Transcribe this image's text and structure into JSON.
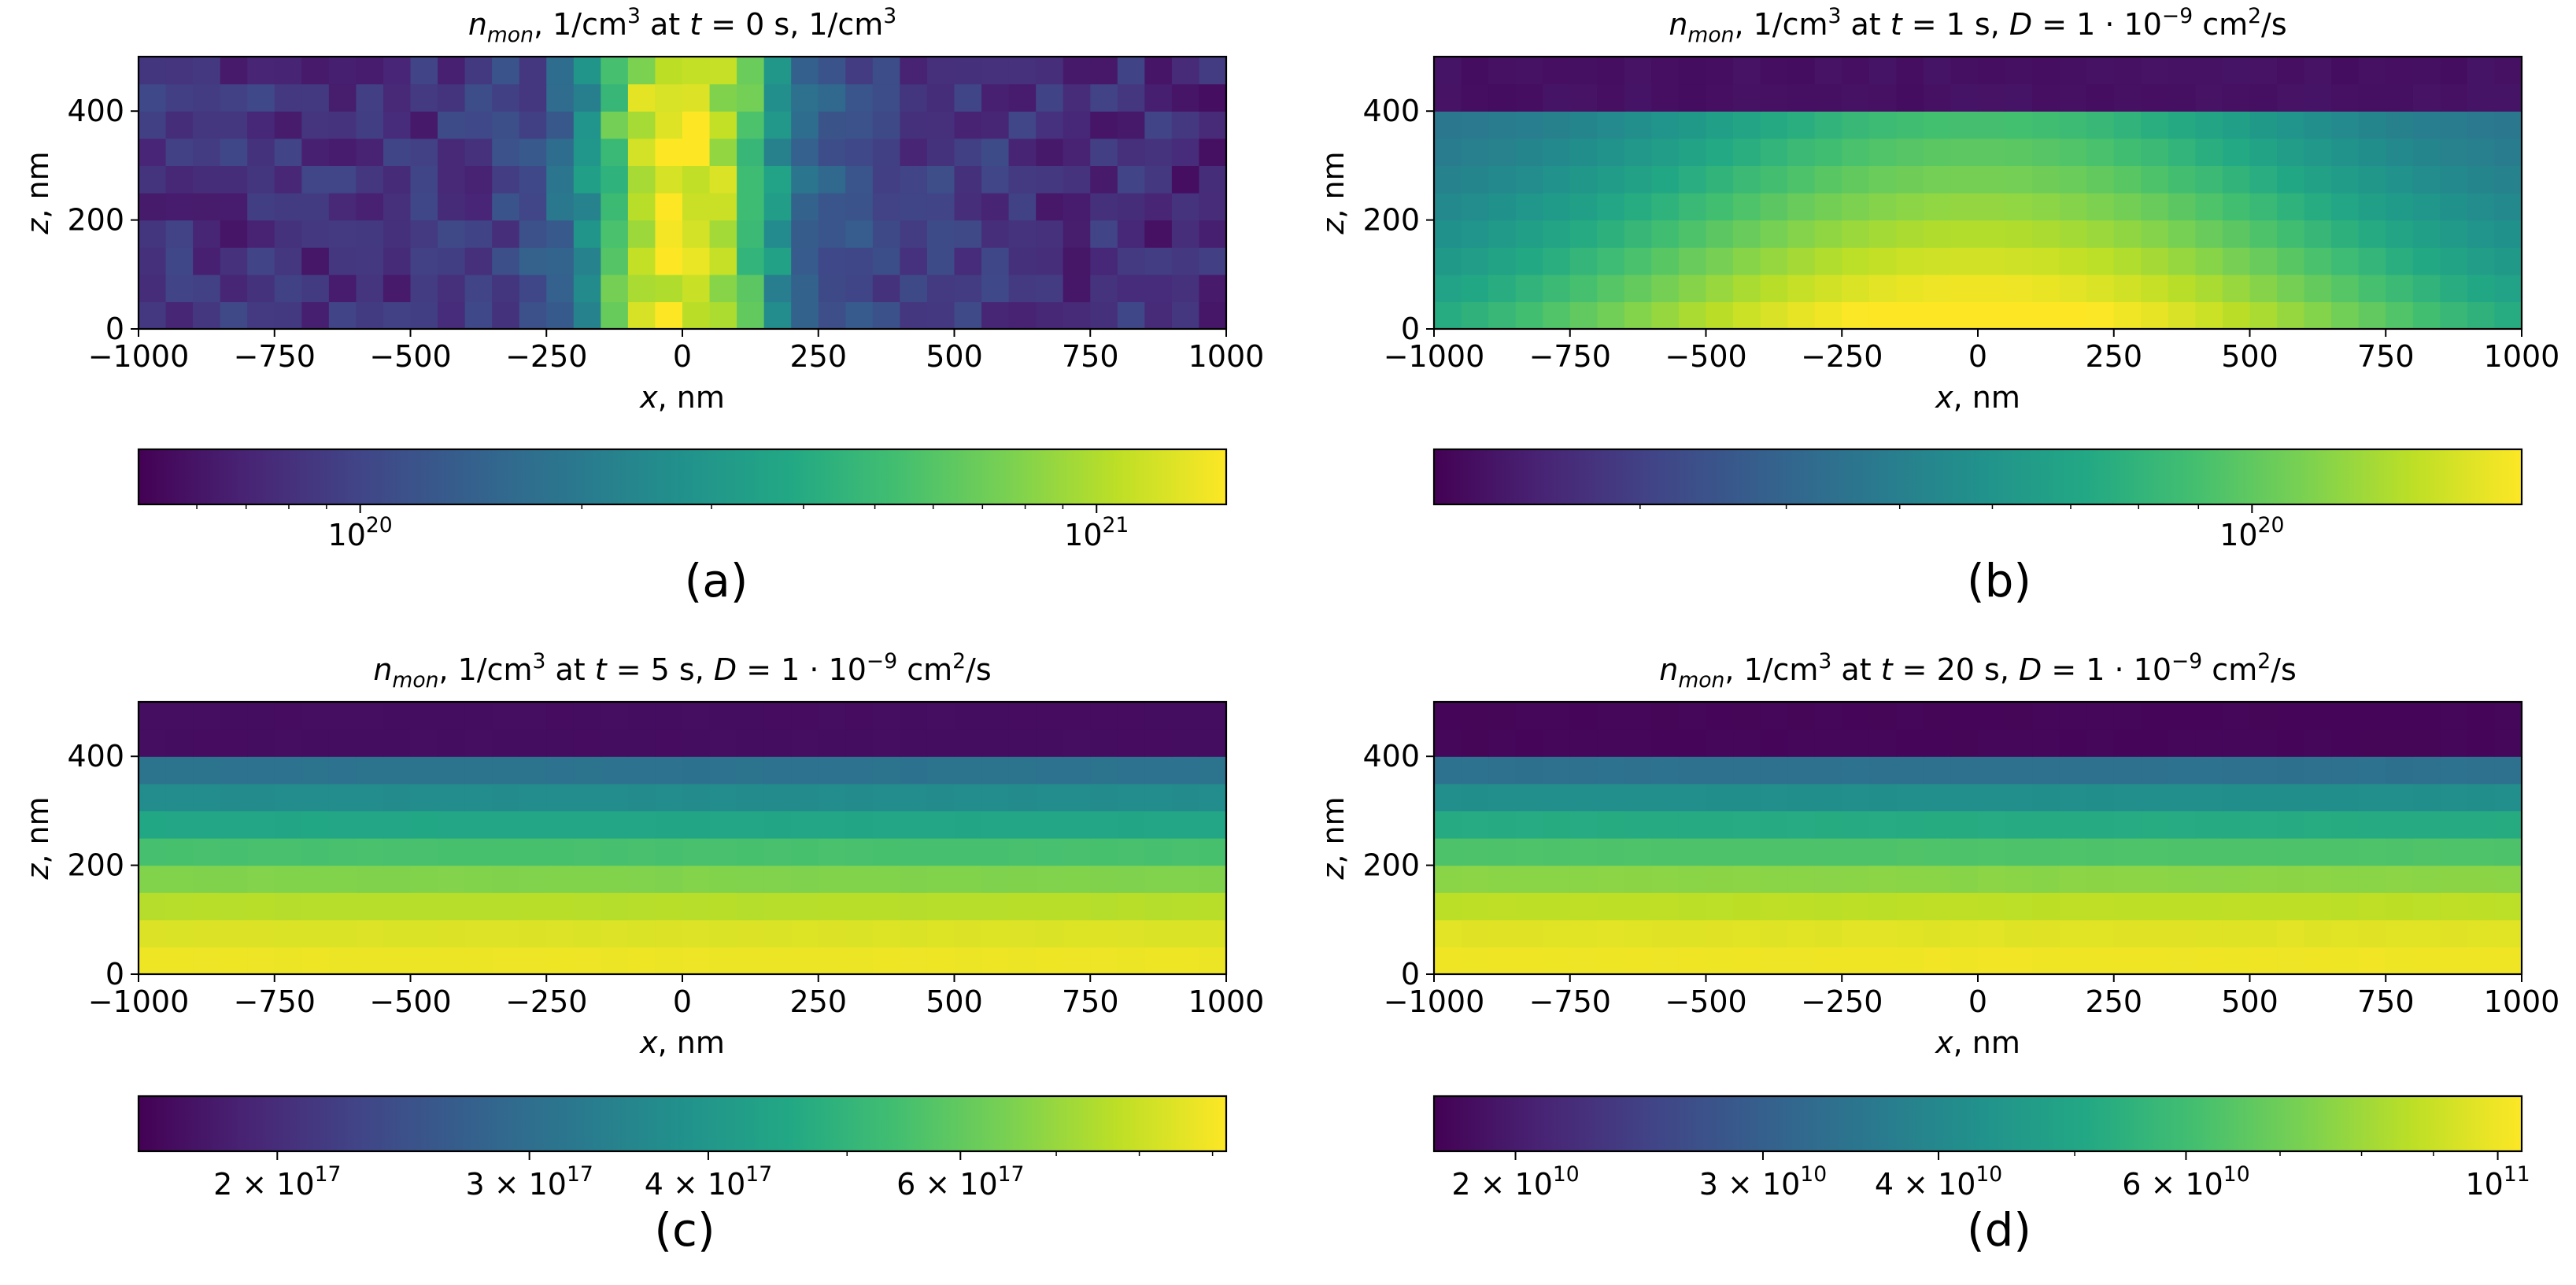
{
  "figure": {
    "panels": [
      {
        "id": "a",
        "title_parts": {
          "n": "n",
          "sub": "mon",
          "mid": ", 1/cm",
          "sup": "3",
          "rest": " at ",
          "t": "t",
          "tail": " = 0 s, 1/cm",
          "sup2": "3"
        },
        "title_text": "n_mon, 1/cm^3 at t = 0 s, 1/cm^3",
        "xlabel_var": "x",
        "xlabel_unit": ", nm",
        "ylabel_var": "z",
        "ylabel_unit": ", nm",
        "xticks": [
          "−1000",
          "−750",
          "−500",
          "−250",
          "0",
          "250",
          "500",
          "750",
          "1000"
        ],
        "yticks": [
          "0",
          "200",
          "400"
        ],
        "cbar_ticks": [
          {
            "base": "10",
            "exp": "20"
          },
          {
            "base": "10",
            "exp": "21"
          }
        ],
        "panel_label": "(a)"
      },
      {
        "id": "b",
        "title_text": "n_mon, 1/cm^3 at t = 1 s, D = 1·10^-9 cm^2/s",
        "title_parts": {
          "n": "n",
          "sub": "mon",
          "mid": ", 1/cm",
          "sup": "3",
          "rest": " at ",
          "t": "t",
          "tail": " = 1 s, ",
          "D": "D",
          "eq": " = 1 · 10",
          "dexp": "−9",
          "unit": " cm",
          "usup": "2",
          "uend": "/s"
        },
        "xlabel_var": "x",
        "xlabel_unit": ", nm",
        "ylabel_var": "z",
        "ylabel_unit": ", nm",
        "xticks": [
          "−1000",
          "−750",
          "−500",
          "−250",
          "0",
          "250",
          "500",
          "750",
          "1000"
        ],
        "yticks": [
          "0",
          "200",
          "400"
        ],
        "cbar_ticks": [
          {
            "base": "10",
            "exp": "20"
          }
        ],
        "panel_label": "(b)"
      },
      {
        "id": "c",
        "title_text": "n_mon, 1/cm^3 at t = 5 s, D = 1·10^-9 cm^2/s",
        "title_parts": {
          "n": "n",
          "sub": "mon",
          "mid": ", 1/cm",
          "sup": "3",
          "rest": " at ",
          "t": "t",
          "tail": " = 5 s, ",
          "D": "D",
          "eq": " = 1 · 10",
          "dexp": "−9",
          "unit": " cm",
          "usup": "2",
          "uend": "/s"
        },
        "xlabel_var": "x",
        "xlabel_unit": ", nm",
        "ylabel_var": "z",
        "ylabel_unit": ", nm",
        "xticks": [
          "−1000",
          "−750",
          "−500",
          "−250",
          "0",
          "250",
          "500",
          "750",
          "1000"
        ],
        "yticks": [
          "0",
          "200",
          "400"
        ],
        "cbar_ticks": [
          {
            "base": "2 × 10",
            "exp": "17"
          },
          {
            "base": "3 × 10",
            "exp": "17"
          },
          {
            "base": "4 × 10",
            "exp": "17"
          },
          {
            "base": "6 × 10",
            "exp": "17"
          }
        ],
        "panel_label": "(c)"
      },
      {
        "id": "d",
        "title_text": "n_mon, 1/cm^3 at t = 20 s, D = 1·10^-9 cm^2/s",
        "title_parts": {
          "n": "n",
          "sub": "mon",
          "mid": ", 1/cm",
          "sup": "3",
          "rest": " at ",
          "t": "t",
          "tail": " = 20 s, ",
          "D": "D",
          "eq": " = 1 · 10",
          "dexp": "−9",
          "unit": " cm",
          "usup": "2",
          "uend": "/s"
        },
        "xlabel_var": "x",
        "xlabel_unit": ", nm",
        "ylabel_var": "z",
        "ylabel_unit": ", nm",
        "xticks": [
          "−1000",
          "−750",
          "−500",
          "−250",
          "0",
          "250",
          "500",
          "750",
          "1000"
        ],
        "yticks": [
          "0",
          "200",
          "400"
        ],
        "cbar_ticks": [
          {
            "base": "2 × 10",
            "exp": "10"
          },
          {
            "base": "3 × 10",
            "exp": "10"
          },
          {
            "base": "4 × 10",
            "exp": "10"
          },
          {
            "base": "6 × 10",
            "exp": "10"
          },
          {
            "base": "10",
            "exp": "11"
          }
        ],
        "panel_label": "(d)"
      }
    ]
  },
  "chart_data": [
    {
      "type": "heatmap",
      "title": "n_mon, 1/cm^3 at t = 0 s, 1/cm^3",
      "xlabel": "x, nm",
      "ylabel": "z, nm",
      "xlim": [
        -1000,
        1000
      ],
      "ylim": [
        0,
        500
      ],
      "colormap": "viridis",
      "color_scale": "log",
      "colorbar_range": [
        5e+19,
        1.5e+21
      ],
      "cell_size_nm": 50,
      "profile_x": [
        -1000,
        -900,
        -800,
        -700,
        -600,
        -500,
        -400,
        -300,
        -250,
        -200,
        -150,
        -100,
        -50,
        0,
        50,
        100,
        150,
        200,
        250,
        300,
        400,
        500,
        600,
        700,
        800,
        900,
        1000
      ],
      "profile_value": [
        8e+19,
        8e+19,
        8e+19,
        8e+19,
        8e+19,
        8e+19,
        8.5e+19,
        1e+20,
        1.2e+20,
        1.8e+20,
        3.5e+20,
        8e+20,
        1.2e+21,
        1.4e+21,
        1.2e+21,
        8e+20,
        3.5e+20,
        2e+20,
        1.3e+20,
        1.1e+20,
        9e+19,
        9e+19,
        8.5e+19,
        8e+19,
        8e+19,
        7.5e+19,
        7e+19
      ]
    },
    {
      "type": "heatmap",
      "title": "n_mon, 1/cm^3 at t = 1 s, D = 1·10^-9 cm^2/s",
      "xlabel": "x, nm",
      "ylabel": "z, nm",
      "xlim": [
        -1000,
        1000
      ],
      "ylim": [
        0,
        500
      ],
      "colormap": "viridis",
      "color_scale": "log",
      "colorbar_range": [
        2e+19,
        1.7e+20
      ],
      "cell_size_nm": 50,
      "model": "max near x=0,z=0 (~1.6e20), decreasing with |x| and z; top layer 400-500 nm ~2.2e19"
    },
    {
      "type": "heatmap",
      "title": "n_mon, 1/cm^3 at t = 5 s, D = 1·10^-9 cm^2/s",
      "xlabel": "x, nm",
      "ylabel": "z, nm",
      "xlim": [
        -1000,
        1000
      ],
      "ylim": [
        0,
        500
      ],
      "colormap": "viridis",
      "color_scale": "log",
      "colorbar_range": [
        1.6e+17,
        9.2e+17
      ],
      "cell_size_nm": 50,
      "z_layers_nm": [
        0,
        50,
        100,
        150,
        200,
        250,
        300,
        350,
        400,
        450
      ],
      "layer_values": [
        8.8e+17,
        8.4e+17,
        7.6e+17,
        6.6e+17,
        5.5e+17,
        4.5e+17,
        3.7e+17,
        3.1e+17,
        1.7e+17,
        1.7e+17
      ]
    },
    {
      "type": "heatmap",
      "title": "n_mon, 1/cm^3 at t = 20 s, D = 1·10^-9 cm^2/s",
      "xlabel": "x, nm",
      "ylabel": "z, nm",
      "xlim": [
        -1000,
        1000
      ],
      "ylim": [
        0,
        500
      ],
      "colormap": "viridis",
      "color_scale": "log",
      "colorbar_range": [
        17500000000.0,
        104000000000.0
      ],
      "cell_size_nm": 50,
      "z_layers_nm": [
        0,
        50,
        100,
        150,
        200,
        250,
        300,
        350,
        400,
        450
      ],
      "layer_values": [
        100000000000.0,
        96000000000.0,
        87000000000.0,
        76000000000.0,
        63000000000.0,
        52000000000.0,
        42000000000.0,
        34000000000.0,
        18000000000.0,
        18000000000.0
      ]
    }
  ]
}
